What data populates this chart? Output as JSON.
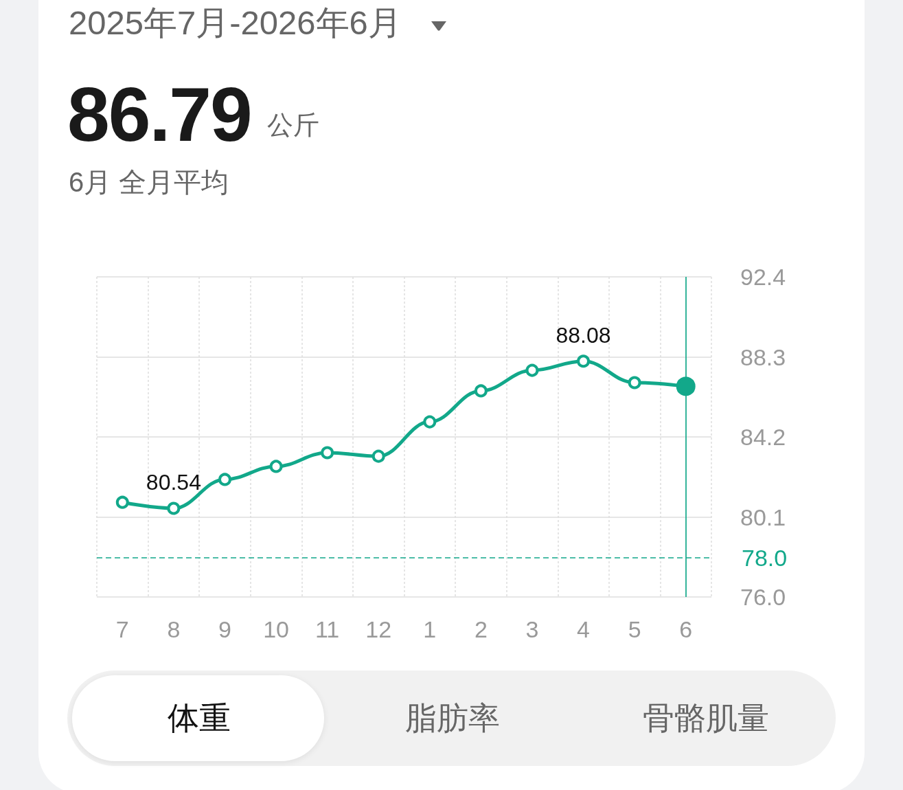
{
  "chart_data": {
    "type": "line",
    "title": "2025年7月-2026年6月",
    "subtitle": "6月 全月平均",
    "annotations": [
      "86.79",
      "公斤",
      "体重",
      "脂肪率",
      "骨骼肌量"
    ],
    "categories": [
      "7",
      "8",
      "9",
      "10",
      "11",
      "12",
      "1",
      "2",
      "3",
      "4",
      "5",
      "6"
    ],
    "series": [
      {
        "color": "#12a88a",
        "values": [
          80.85,
          80.54,
          82.02,
          82.69,
          83.39,
          83.21,
          84.97,
          86.56,
          87.61,
          88.08,
          86.98,
          86.79
        ],
        "value_labels": [
          null,
          "80.54",
          null,
          null,
          null,
          null,
          null,
          null,
          null,
          "88.08",
          null,
          null
        ]
      }
    ],
    "ylim": [
      76,
      92.4
    ],
    "yticks": [
      {
        "value": 76,
        "label": "76.0"
      },
      80.1,
      84.2,
      88.3,
      92.4
    ],
    "ref_lines": [
      {
        "axis": "y",
        "value": 78,
        "label": "78.0",
        "color": "#12a88a",
        "line_style": "dashed"
      },
      {
        "axis": "x",
        "value": "6",
        "color": "#12a88a",
        "line_style": "solid"
      }
    ],
    "grid": true,
    "marker": "circle",
    "line_style": "solid"
  }
}
